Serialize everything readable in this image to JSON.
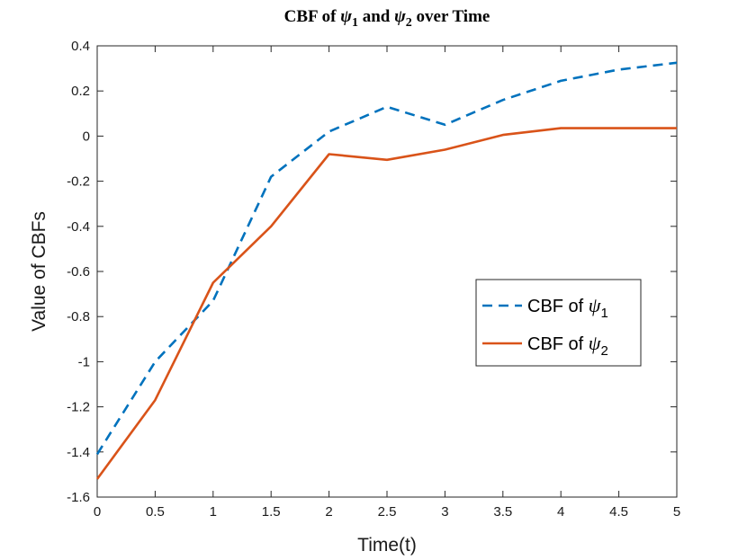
{
  "chart_data": {
    "type": "line",
    "title": "CBF of ψ1 and ψ2 over Time",
    "title_parts": {
      "prefix": "CBF of ",
      "symbol": "ψ",
      "sub1": "1",
      "mid": " and ",
      "sub2": "2",
      "suffix": " over Time"
    },
    "xlabel": "Time(t)",
    "ylabel": "Value of CBFs",
    "xlim": [
      0,
      5
    ],
    "ylim": [
      -1.6,
      0.4
    ],
    "xticks": [
      0,
      0.5,
      1,
      1.5,
      2,
      2.5,
      3,
      3.5,
      4,
      4.5,
      5
    ],
    "xtick_labels": [
      "0",
      "0.5",
      "1",
      "1.5",
      "2",
      "2.5",
      "3",
      "3.5",
      "4",
      "4.5",
      "5"
    ],
    "yticks": [
      -1.6,
      -1.4,
      -1.2,
      -1,
      -0.8,
      -0.6,
      -0.4,
      -0.2,
      0,
      0.2,
      0.4
    ],
    "ytick_labels": [
      "-1.6",
      "-1.4",
      "-1.2",
      "-1",
      "-0.8",
      "-0.6",
      "-0.4",
      "-0.2",
      "0",
      "0.2",
      "0.4"
    ],
    "grid": false,
    "legend_position": "right-middle",
    "series": [
      {
        "name": "CBF of ψ1",
        "legend_prefix": "CBF of ",
        "legend_symbol": "ψ",
        "legend_sub": "1",
        "color": "#0072BD",
        "style": "dashed",
        "x": [
          0,
          0.5,
          1,
          1.5,
          2,
          2.5,
          3,
          3.5,
          4,
          4.5,
          5
        ],
        "y": [
          -1.41,
          -1.0,
          -0.73,
          -0.18,
          0.02,
          0.13,
          0.05,
          0.16,
          0.245,
          0.295,
          0.325
        ]
      },
      {
        "name": "CBF of ψ2",
        "legend_prefix": "CBF of ",
        "legend_symbol": "ψ",
        "legend_sub": "2",
        "color": "#D95319",
        "style": "solid",
        "x": [
          0,
          0.5,
          1,
          1.5,
          2,
          2.5,
          3,
          3.5,
          4,
          4.5,
          5
        ],
        "y": [
          -1.52,
          -1.17,
          -0.65,
          -0.4,
          -0.08,
          -0.105,
          -0.06,
          0.005,
          0.035,
          0.035,
          0.035
        ]
      }
    ]
  }
}
